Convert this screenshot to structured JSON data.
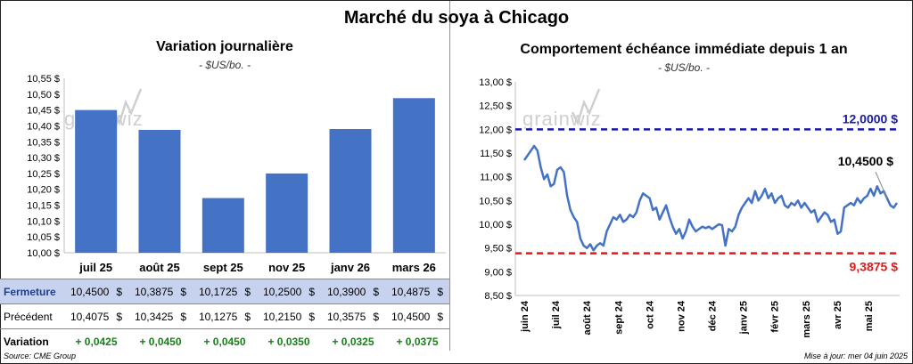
{
  "title": "Marché du soya à Chicago",
  "colors": {
    "bar": "#4472c4",
    "line": "#4472c4",
    "resistance": "#1a1aa8",
    "support": "#e01b1b",
    "variation": "#1a7d1a"
  },
  "watermark": "grainwiz",
  "chart_data": [
    {
      "type": "bar",
      "title": "Variation journalière",
      "subtitle": "- $US/bo. -",
      "categories": [
        "juil 25",
        "août 25",
        "sept 25",
        "nov 25",
        "janv 26",
        "mars 26"
      ],
      "values": [
        10.45,
        10.3875,
        10.1725,
        10.25,
        10.39,
        10.4875
      ],
      "ylim": [
        10.0,
        10.55
      ],
      "yticks": [
        "10,00 $",
        "10,05 $",
        "10,10 $",
        "10,15 $",
        "10,20 $",
        "10,25 $",
        "10,30 $",
        "10,35 $",
        "10,40 $",
        "10,45 $",
        "10,50 $",
        "10,55 $"
      ],
      "grid": false
    },
    {
      "type": "line",
      "title": "Comportement échéance immédiate depuis 1 an",
      "subtitle": "- $US/bo. -",
      "ylim": [
        8.5,
        13.0
      ],
      "yticks": [
        "8,50 $",
        "9,00 $",
        "9,50 $",
        "10,00 $",
        "10,50 $",
        "11,00 $",
        "11,50 $",
        "12,00 $",
        "12,50 $",
        "13,00 $"
      ],
      "xticks": [
        "juin 24",
        "juil 24",
        "août 24",
        "sept 24",
        "oct 24",
        "nov 24",
        "déc 24",
        "janv 25",
        "févr 25",
        "mars 25",
        "avr 25",
        "mai 25"
      ],
      "series_values": [
        11.35,
        11.45,
        11.55,
        11.65,
        11.55,
        11.2,
        10.95,
        11.05,
        10.8,
        10.85,
        11.15,
        11.2,
        11.1,
        10.6,
        10.3,
        10.15,
        10.05,
        9.7,
        9.55,
        9.5,
        9.58,
        9.45,
        9.55,
        9.6,
        9.55,
        9.85,
        10.0,
        10.15,
        10.1,
        10.2,
        10.05,
        10.1,
        10.2,
        10.15,
        10.25,
        10.5,
        10.65,
        10.6,
        10.55,
        10.3,
        10.35,
        10.1,
        10.25,
        10.4,
        10.15,
        9.95,
        9.8,
        9.9,
        9.7,
        9.85,
        10.1,
        9.95,
        9.85,
        9.9,
        9.95,
        9.92,
        9.95,
        9.9,
        9.95,
        10.0,
        9.98,
        9.55,
        9.9,
        9.85,
        9.95,
        10.2,
        10.35,
        10.45,
        10.55,
        10.45,
        10.7,
        10.5,
        10.6,
        10.75,
        10.55,
        10.65,
        10.45,
        10.55,
        10.6,
        10.4,
        10.35,
        10.45,
        10.4,
        10.5,
        10.35,
        10.45,
        10.35,
        10.25,
        10.3,
        10.05,
        10.15,
        10.25,
        10.2,
        10.05,
        10.1,
        9.8,
        9.85,
        10.35,
        10.4,
        10.45,
        10.4,
        10.55,
        10.45,
        10.55,
        10.6,
        10.75,
        10.6,
        10.8,
        10.65,
        10.7,
        10.55,
        10.4,
        10.35,
        10.45
      ],
      "x_range": [
        "juin 24",
        "juin 25"
      ],
      "lines": [
        {
          "label": "12,0000 $",
          "value": 12.0,
          "style": "dashed",
          "color": "#1a1aa8"
        },
        {
          "label": "9,3875 $",
          "value": 9.3875,
          "style": "dashed",
          "color": "#e01b1b"
        }
      ],
      "annotation": {
        "label": "10,4500 $",
        "value": 10.45
      },
      "grid": false
    }
  ],
  "table": {
    "rows": [
      {
        "label": "Fermeture",
        "values": [
          "10,4500",
          "10,3875",
          "10,1725",
          "10,2500",
          "10,3900",
          "10,4875"
        ],
        "suffix": "$"
      },
      {
        "label": "Précédent",
        "values": [
          "10,4075",
          "10,3425",
          "10,1275",
          "10,2150",
          "10,3575",
          "10,4500"
        ],
        "suffix": "$"
      },
      {
        "label": "Variation",
        "values": [
          "+ 0,0425",
          "+ 0,0450",
          "+ 0,0450",
          "+ 0,0350",
          "+ 0,0325",
          "+ 0,0375"
        ]
      }
    ]
  },
  "footer": {
    "source": "Source: CME Group",
    "updated": "Mise à jour: mer 04 juin 2025"
  }
}
